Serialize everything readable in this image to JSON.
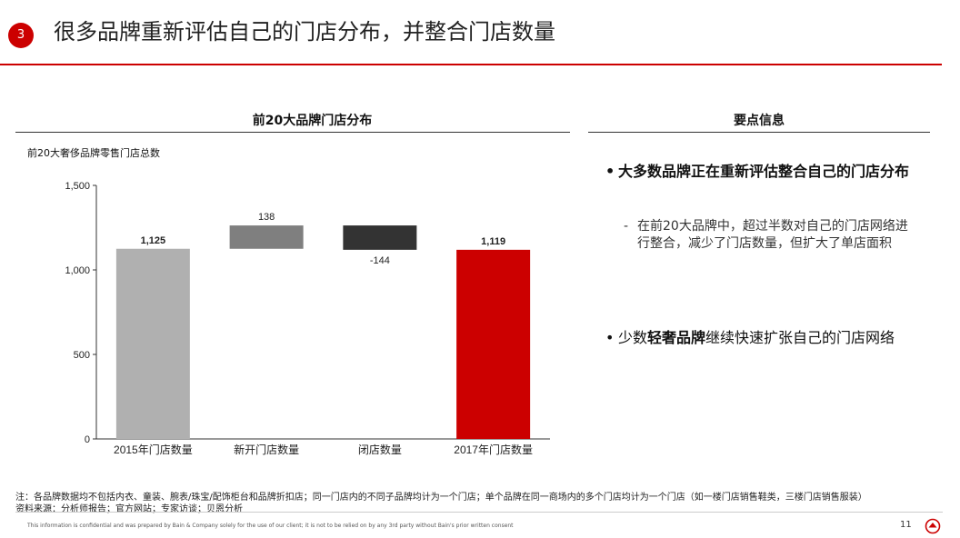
{
  "header": {
    "slide_number": "3",
    "title": "很多品牌重新评估自己的门店分布，并整合门店数量"
  },
  "left_section": {
    "heading": "前20大品牌门店分布",
    "subtitle": "前20大奢侈品牌零售门店总数"
  },
  "chart_data": {
    "type": "bar",
    "subtype": "waterfall",
    "title": "",
    "ylabel": "",
    "categories": [
      "2015年门店数量",
      "新开门店数量",
      "闭店数量",
      "2017年门店数量"
    ],
    "values": [
      1125,
      138,
      -144,
      1119
    ],
    "value_labels": [
      "1,125",
      "138",
      "-144",
      "1,119"
    ],
    "ylim": [
      0,
      1500
    ],
    "yticks": [
      0,
      500,
      1000,
      1500
    ],
    "ytick_labels": [
      "0",
      "500",
      "1,000",
      "1,500"
    ],
    "colors": [
      "#b0b0b0",
      "#7f7f7f",
      "#333333",
      "#cc0000"
    ],
    "grid": false,
    "legend": "none"
  },
  "right_section": {
    "heading": "要点信息",
    "bullet1": "大多数品牌正在重新评估整合自己的门店分布",
    "bullet1_sub": "在前20大品牌中，超过半数对自己的门店网络进行整合，减少了门店数量，但扩大了单店面积",
    "bullet2_prefix": "少数",
    "bullet2_bold": "轻奢品牌",
    "bullet2_suffix": "继续快速扩张自己的门店网络"
  },
  "footer": {
    "note": "注：各品牌数据均不包括内衣、童装、腕表/珠宝/配饰柜台和品牌折扣店；同一门店内的不同子品牌均计为一个门店；单个品牌在同一商场内的多个门店均计为一个门店（如一楼门店销售鞋类，三楼门店销售服装）",
    "source": "资料来源：分析师报告；官方网站；专家访谈；贝恩分析",
    "disclaimer": "This information is confidential and was prepared by Bain & Company solely for the use of our client; it is not to be relied on by any 3rd party without Bain's prior written consent",
    "page_number": "11"
  },
  "colors": {
    "accent": "#cc0000"
  }
}
